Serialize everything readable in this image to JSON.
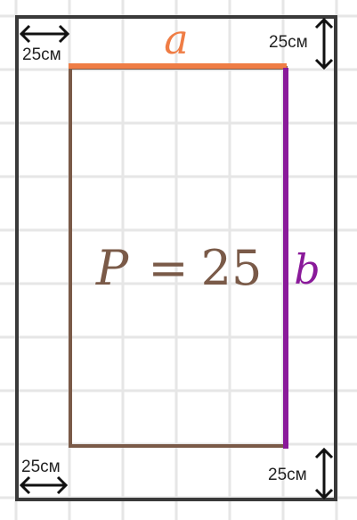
{
  "colors": {
    "grid": "#e6e6e6",
    "frame": "#3a3a3a",
    "rectangle": "#7a5a48",
    "side_a": "#ef7d45",
    "side_b": "#8a1a9a",
    "arrows": "#111111"
  },
  "labels": {
    "side_a": "a",
    "side_b": "b",
    "formula_var": "P",
    "formula_eq": "=",
    "formula_value": "25",
    "margin_top_left": "25см",
    "margin_top_right": "25см",
    "margin_bottom_left": "25см",
    "margin_bottom_right": "25см"
  },
  "icons": {
    "top_left": "horizontal-double-arrow-icon",
    "top_right": "vertical-double-arrow-icon",
    "bottom_left": "horizontal-double-arrow-icon",
    "bottom_right": "vertical-double-arrow-icon"
  }
}
